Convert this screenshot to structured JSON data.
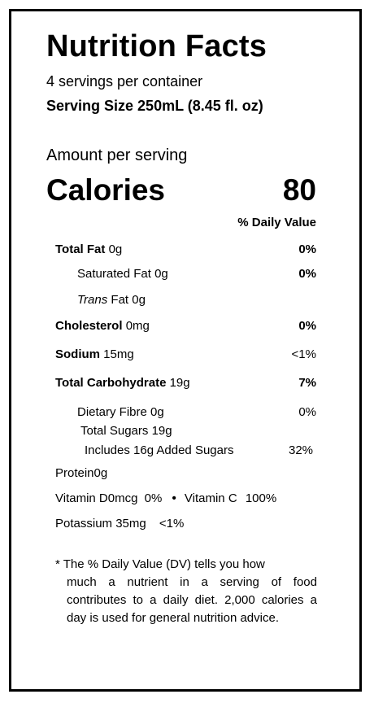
{
  "title": "Nutrition Facts",
  "servings_per_container": "4 servings per container",
  "serving_size": "Serving Size 250mL (8.45 fl. oz)",
  "amount_per_serving": "Amount per serving",
  "calories": {
    "label": "Calories",
    "value": "80"
  },
  "daily_value_header": "% Daily Value",
  "nutrients": {
    "total_fat": {
      "name": "Total Fat",
      "amount": "0g",
      "dv": "0%"
    },
    "saturated_fat": {
      "name": "Saturated Fat",
      "amount": "0g",
      "dv": "0%"
    },
    "trans_fat": {
      "name_italic": "Trans",
      "name": "Fat",
      "amount": "0g"
    },
    "cholesterol": {
      "name": "Cholesterol",
      "amount": "0mg",
      "dv": "0%"
    },
    "sodium": {
      "name": "Sodium",
      "amount": "15mg",
      "dv": "<1%"
    },
    "total_carbohydrate": {
      "name": "Total Carbohydrate",
      "amount": "19g",
      "dv": "7%"
    },
    "dietary_fibre": {
      "name": "Dietary Fibre",
      "amount": "0g",
      "dv": "0%"
    },
    "total_sugars": {
      "name": "Total Sugars",
      "amount": "19g"
    },
    "added_sugars": {
      "text": "Includes 16g Added Sugars",
      "dv": "32%"
    },
    "protein": {
      "name": "Protein",
      "amount": "0g"
    }
  },
  "vitamins": {
    "vitamin_d": {
      "name": "Vitamin D",
      "amount": "0mcg",
      "dv": "0%"
    },
    "separator": "•",
    "vitamin_c": {
      "name": "Vitamin C",
      "dv": "100%"
    },
    "potassium": {
      "name": "Potassium",
      "amount": "35mg",
      "dv": "<1%"
    }
  },
  "footnote": {
    "first_line": "* The % Daily Value (DV) tells you how",
    "rest": "much a nutrient in a serving of food contributes to a daily diet. 2,000 calories a day is used for general nutrition advice."
  }
}
